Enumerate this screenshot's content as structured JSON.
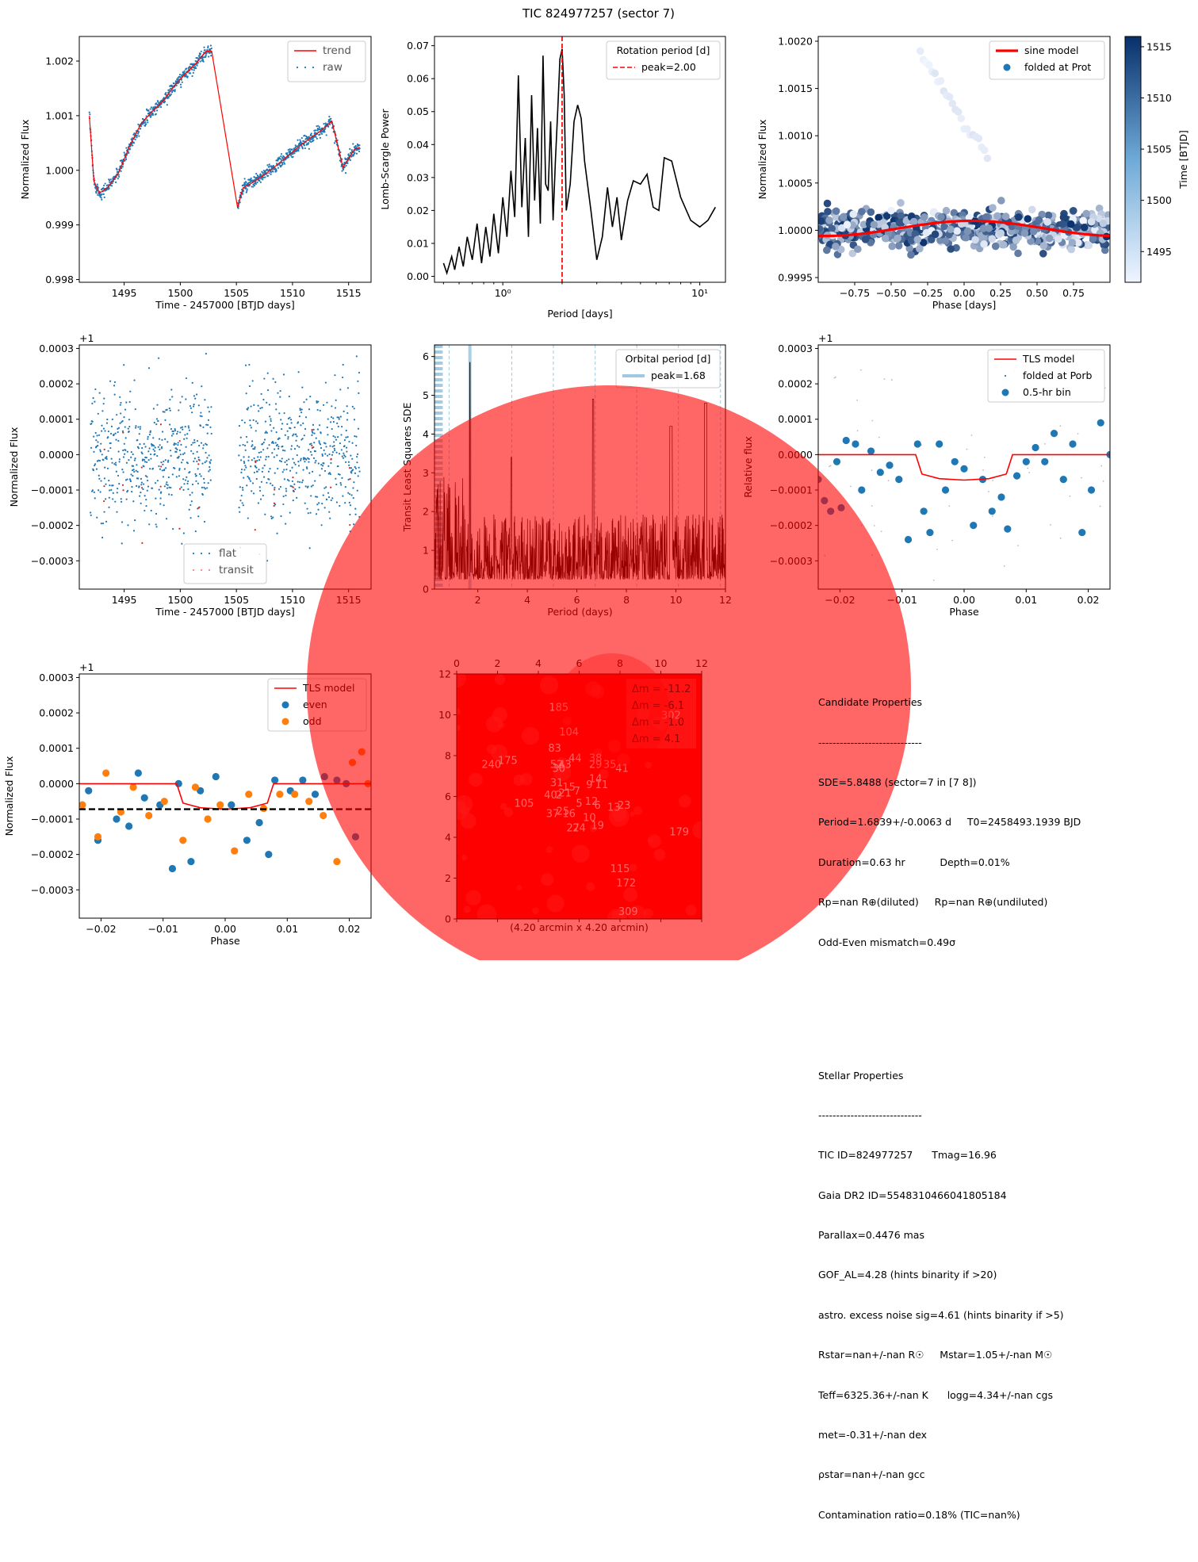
{
  "figure": {
    "suptitle": "TIC 824977257 (sector 7)",
    "colors": {
      "trend": "#ff0000",
      "raw": "#1f77b4",
      "even": "#1f77b4",
      "odd": "#ff7f0e",
      "overlay": "#ff0000"
    }
  },
  "chart_data": [
    {
      "id": "raw_lc",
      "type": "scatter",
      "xlabel": "Time - 2457000 [BTJD days]",
      "ylabel": "Normalized Flux",
      "xlim": [
        1491,
        1517
      ],
      "ylim": [
        0.99795,
        1.00245
      ],
      "xticks": [
        1495,
        1500,
        1505,
        1510,
        1515
      ],
      "xtick_labels": [
        "1495",
        "1500",
        "1505",
        "1510",
        "1515"
      ],
      "yticks": [
        0.998,
        0.999,
        1.0,
        1.001,
        1.002
      ],
      "ytick_labels": [
        "0.998",
        "0.999",
        "1.000",
        "1.001",
        "1.002"
      ],
      "legend": [
        "trend",
        "raw"
      ],
      "legend_position": "top-right",
      "series": [
        {
          "name": "trend",
          "kind": "line",
          "x": [
            1491.9,
            1492.3,
            1492.8,
            1493.5,
            1494.5,
            1495.5,
            1496.5,
            1497.5,
            1498.5,
            1499.5,
            1500.5,
            1501.5,
            1502.3,
            1502.8,
            1505.1,
            1505.6,
            1506.5,
            1507.5,
            1508.5,
            1509.5,
            1510.5,
            1511.5,
            1512.5,
            1513.5,
            1514.5,
            1515.5,
            1516.0
          ],
          "y": [
            1.001,
            0.9998,
            0.99958,
            0.99968,
            0.99995,
            1.00045,
            1.00085,
            1.00108,
            1.00128,
            1.00155,
            1.00178,
            1.00198,
            1.00218,
            1.00218,
            0.99932,
            0.99968,
            0.99978,
            0.99992,
            1.00008,
            1.00025,
            1.00042,
            1.00058,
            1.00072,
            1.0009,
            1.00005,
            1.00038,
            1.00042
          ]
        },
        {
          "name": "raw",
          "kind": "points",
          "generated": "noisy samples along the trend, 1491.9-1502.8 and 1505.1-1516.0 BTJD"
        }
      ]
    },
    {
      "id": "lomb_scargle",
      "type": "line",
      "xlabel": "Period [days]",
      "ylabel": "Lomb-Scargle Power",
      "xscale": "log",
      "xlim": [
        0.45,
        13.5
      ],
      "ylim": [
        -0.0018,
        0.0728
      ],
      "xticks": [
        1,
        10
      ],
      "xtick_labels": [
        "10⁰",
        "10¹"
      ],
      "yticks": [
        0.0,
        0.01,
        0.02,
        0.03,
        0.04,
        0.05,
        0.06,
        0.07
      ],
      "ytick_labels": [
        "0.00",
        "0.01",
        "0.02",
        "0.03",
        "0.04",
        "0.05",
        "0.06",
        "0.07"
      ],
      "legend_title": "Rotation period [d]",
      "legend": [
        "peak=2.00"
      ],
      "peak": 2.0,
      "series": [
        {
          "name": "power",
          "x": [
            0.5,
            0.52,
            0.55,
            0.57,
            0.6,
            0.63,
            0.66,
            0.7,
            0.74,
            0.78,
            0.82,
            0.86,
            0.9,
            0.95,
            1.0,
            1.05,
            1.1,
            1.15,
            1.2,
            1.25,
            1.3,
            1.35,
            1.4,
            1.45,
            1.5,
            1.55,
            1.6,
            1.65,
            1.7,
            1.75,
            1.8,
            1.85,
            1.9,
            1.95,
            2.0,
            2.05,
            2.1,
            2.2,
            2.3,
            2.4,
            2.5,
            2.6,
            2.8,
            3.0,
            3.2,
            3.4,
            3.6,
            3.8,
            4.0,
            4.3,
            4.6,
            5.0,
            5.4,
            5.8,
            6.2,
            6.6,
            7.2,
            8.0,
            9.0,
            10.0,
            11.0,
            12.0
          ],
          "y": [
            0.004,
            0.001,
            0.006,
            0.002,
            0.009,
            0.003,
            0.012,
            0.005,
            0.016,
            0.004,
            0.015,
            0.006,
            0.019,
            0.007,
            0.024,
            0.012,
            0.032,
            0.018,
            0.061,
            0.021,
            0.042,
            0.012,
            0.055,
            0.023,
            0.045,
            0.016,
            0.067,
            0.028,
            0.026,
            0.047,
            0.017,
            0.035,
            0.05,
            0.066,
            0.069,
            0.055,
            0.02,
            0.028,
            0.047,
            0.052,
            0.048,
            0.035,
            0.02,
            0.005,
            0.012,
            0.027,
            0.015,
            0.024,
            0.011,
            0.023,
            0.029,
            0.028,
            0.031,
            0.021,
            0.02,
            0.036,
            0.035,
            0.024,
            0.017,
            0.015,
            0.017,
            0.021
          ]
        }
      ]
    },
    {
      "id": "rotation_fold",
      "type": "scatter",
      "xlabel": "Phase [days]",
      "ylabel": "Normalized Flux",
      "colorbar_label": "Time [BTJD]",
      "colorbar_range": [
        1492,
        1516
      ],
      "colorbar_ticks": [
        "1495",
        "1500",
        "1505",
        "1510",
        "1515"
      ],
      "xlim": [
        -1.0,
        1.0
      ],
      "ylim": [
        0.99945,
        1.00205
      ],
      "xticks": [
        -0.75,
        -0.5,
        -0.25,
        0.0,
        0.25,
        0.5,
        0.75
      ],
      "xtick_labels": [
        "−0.75",
        "−0.50",
        "−0.25",
        "0.00",
        "0.25",
        "0.50",
        "0.75"
      ],
      "yticks": [
        0.9995,
        1.0,
        1.0005,
        1.001,
        1.0015,
        1.002
      ],
      "ytick_labels": [
        "0.9995",
        "1.0000",
        "1.0005",
        "1.0010",
        "1.0015",
        "1.0020"
      ],
      "legend": [
        "sine model",
        "folded at Prot"
      ],
      "series": [
        {
          "name": "sine model",
          "kind": "line",
          "amplitude": 8e-05,
          "offset": 1.00002
        },
        {
          "name": "folded at Prot",
          "kind": "points",
          "generated": "scatter around 1.0000 with sigma 0.0001"
        }
      ]
    },
    {
      "id": "flat_lc",
      "type": "scatter",
      "xlabel": "Time - 2457000 [BTJD days]",
      "ylabel": "Normalized Flux",
      "offset_label": "+1",
      "xlim": [
        1491,
        1517
      ],
      "ylim": [
        -0.00038,
        0.00031
      ],
      "xticks": [
        1495,
        1500,
        1505,
        1510,
        1515
      ],
      "xtick_labels": [
        "1495",
        "1500",
        "1505",
        "1510",
        "1515"
      ],
      "yticks": [
        -0.0003,
        -0.0002,
        -0.0001,
        0.0,
        0.0001,
        0.0002,
        0.0003
      ],
      "ytick_labels": [
        "−0.0003",
        "−0.0002",
        "−0.0001",
        "0.0000",
        "0.0001",
        "0.0002",
        "0.0003"
      ],
      "legend": [
        "flat",
        "transit"
      ],
      "legend_position": "bottom-center"
    },
    {
      "id": "tls_periodogram",
      "type": "line",
      "xlabel": "Period (days)",
      "ylabel": "Transit Least Squares SDE",
      "xlim": [
        0.25,
        12.0
      ],
      "ylim": [
        0,
        6.3
      ],
      "xticks": [
        2,
        4,
        6,
        8,
        10,
        12
      ],
      "xtick_labels": [
        "2",
        "4",
        "6",
        "8",
        "10",
        "12"
      ],
      "yticks": [
        0,
        1,
        2,
        3,
        4,
        5,
        6
      ],
      "ytick_labels": [
        "0",
        "1",
        "2",
        "3",
        "4",
        "5",
        "6"
      ],
      "legend_title": "Orbital period [d]",
      "legend": [
        "peak=1.68"
      ],
      "peak": 1.68,
      "harmonics": [
        3.37,
        5.05,
        6.74,
        8.42,
        10.1,
        11.8,
        0.84,
        0.56,
        0.42,
        0.34,
        0.28
      ]
    },
    {
      "id": "tls_fold",
      "type": "scatter",
      "xlabel": "Phase",
      "ylabel": "Relative flux",
      "offset_label": "+1",
      "xlim": [
        -0.0235,
        0.0235
      ],
      "ylim": [
        -0.00038,
        0.00031
      ],
      "xticks": [
        -0.02,
        -0.01,
        0.0,
        0.01,
        0.02
      ],
      "xtick_labels": [
        "−0.02",
        "−0.01",
        "0.00",
        "0.01",
        "0.02"
      ],
      "yticks": [
        -0.0003,
        -0.0002,
        -0.0001,
        0.0,
        0.0001,
        0.0002,
        0.0003
      ],
      "ytick_labels": [
        "−0.0003",
        "−0.0002",
        "−0.0001",
        "0.0000",
        "0.0001",
        "0.0002",
        "0.0003"
      ],
      "legend": [
        "TLS model",
        "folded at Porb",
        "0.5-hr bin"
      ],
      "series": [
        {
          "name": "0.5-hr bin",
          "x": [
            -0.0235,
            -0.0205,
            -0.019,
            -0.0175,
            -0.0165,
            -0.015,
            -0.0135,
            -0.012,
            -0.0105,
            -0.009,
            -0.0075,
            -0.0065,
            -0.0055,
            -0.004,
            -0.003,
            -0.0015,
            0.0,
            0.0015,
            0.003,
            0.0045,
            0.006,
            0.007,
            0.0085,
            0.01,
            0.0115,
            0.013,
            0.0145,
            0.016,
            0.0175,
            0.019,
            0.0205,
            0.022,
            0.0235,
            -0.0225,
            -0.0215,
            -0.0198
          ],
          "y": [
            -7e-05,
            -2e-05,
            4e-05,
            3e-05,
            -0.0001,
            1e-05,
            -5e-05,
            -3e-05,
            -7e-05,
            -0.00024,
            3e-05,
            -0.00016,
            -0.00022,
            3e-05,
            -0.0001,
            -2e-05,
            -4e-05,
            -0.0002,
            -7e-05,
            -0.00016,
            -0.00012,
            -0.00021,
            -6e-05,
            -2e-05,
            2e-05,
            -2e-05,
            6e-05,
            -7e-05,
            3e-05,
            -0.00022,
            -0.0001,
            9e-05,
            0.0,
            -0.00013,
            -0.00016,
            -0.00015
          ]
        }
      ]
    },
    {
      "id": "odd_even",
      "type": "scatter",
      "xlabel": "Phase",
      "ylabel": "Normalized Flux",
      "offset_label": "+1",
      "xlim": [
        -0.0235,
        0.0235
      ],
      "ylim": [
        -0.00038,
        0.00031
      ],
      "xticks": [
        -0.02,
        -0.01,
        0.0,
        0.01,
        0.02
      ],
      "xtick_labels": [
        "−0.02",
        "−0.01",
        "0.00",
        "0.01",
        "0.02"
      ],
      "yticks": [
        -0.0003,
        -0.0002,
        -0.0001,
        0.0,
        0.0001,
        0.0002,
        0.0003
      ],
      "ytick_labels": [
        "−0.0003",
        "−0.0002",
        "−0.0001",
        "0.0000",
        "0.0001",
        "0.0002",
        "0.0003"
      ],
      "legend": [
        "TLS model",
        "even",
        "odd"
      ],
      "series": [
        {
          "name": "even",
          "x": [
            -0.022,
            -0.0205,
            -0.0175,
            -0.0155,
            -0.014,
            -0.013,
            -0.0105,
            -0.0085,
            -0.0075,
            -0.0055,
            -0.004,
            -0.0015,
            0.001,
            0.0035,
            0.0055,
            0.007,
            0.008,
            0.0105,
            0.0125,
            0.0145,
            0.016,
            0.018,
            0.0195,
            0.021
          ],
          "y": [
            -2e-05,
            -0.00016,
            -0.0001,
            -0.00012,
            3e-05,
            -4e-05,
            -6e-05,
            -0.00024,
            0.0,
            -0.00022,
            -2e-05,
            2e-05,
            -6e-05,
            -0.00016,
            -0.00011,
            -0.0002,
            1e-05,
            -2e-05,
            1e-05,
            -3e-05,
            2e-05,
            1e-05,
            0.0,
            -0.00015
          ]
        },
        {
          "name": "odd",
          "x": [
            -0.023,
            -0.0205,
            -0.0192,
            -0.0168,
            -0.0148,
            -0.0123,
            -0.0098,
            -0.0068,
            -0.0048,
            -0.0028,
            -0.0008,
            0.0015,
            0.0038,
            0.0062,
            0.0088,
            0.0112,
            0.0135,
            0.0158,
            0.018,
            0.0205,
            0.022,
            0.023
          ],
          "y": [
            -6e-05,
            -0.00015,
            3e-05,
            -8e-05,
            -1e-05,
            -9e-05,
            -5e-05,
            -0.00016,
            -1e-05,
            -0.0001,
            -6e-05,
            -0.00019,
            -3e-05,
            -7e-05,
            -3e-05,
            -3e-05,
            -5e-05,
            -9e-05,
            -0.00022,
            6e-05,
            9e-05,
            0.0
          ]
        }
      ]
    },
    {
      "id": "tpf_image",
      "type": "heatmap",
      "caption": "(4.20 arcmin x 4.20 arcmin)",
      "xlim": [
        0,
        12
      ],
      "ylim": [
        0,
        12
      ],
      "xticks": [
        "0",
        "2",
        "4",
        "6",
        "8",
        "10",
        "12"
      ],
      "yticks": [
        "0",
        "2",
        "4",
        "6",
        "8",
        "10",
        "12"
      ],
      "legend": [
        "Δm = -11.2",
        "Δm = -6.1",
        "Δm = -1.0",
        "Δm = 4.1"
      ],
      "labels": [
        {
          "t": "185",
          "x": 5.0,
          "y": 10.2
        },
        {
          "t": "104",
          "x": 5.5,
          "y": 9.0
        },
        {
          "t": "302",
          "x": 10.5,
          "y": 9.8
        },
        {
          "t": "83",
          "x": 4.8,
          "y": 8.2
        },
        {
          "t": "44",
          "x": 5.8,
          "y": 7.7
        },
        {
          "t": "38",
          "x": 6.8,
          "y": 7.7
        },
        {
          "t": "175",
          "x": 2.5,
          "y": 7.6
        },
        {
          "t": "240",
          "x": 1.7,
          "y": 7.4
        },
        {
          "t": "29",
          "x": 6.8,
          "y": 7.4
        },
        {
          "t": "35",
          "x": 7.5,
          "y": 7.4
        },
        {
          "t": "41",
          "x": 8.1,
          "y": 7.2
        },
        {
          "t": "52",
          "x": 4.9,
          "y": 7.4
        },
        {
          "t": "43",
          "x": 5.3,
          "y": 7.4
        },
        {
          "t": "30",
          "x": 5.0,
          "y": 7.2
        },
        {
          "t": "14",
          "x": 6.8,
          "y": 6.7
        },
        {
          "t": "9",
          "x": 6.5,
          "y": 6.4
        },
        {
          "t": "11",
          "x": 7.1,
          "y": 6.4
        },
        {
          "t": "31",
          "x": 4.9,
          "y": 6.5
        },
        {
          "t": "15",
          "x": 5.5,
          "y": 6.3
        },
        {
          "t": "7",
          "x": 5.9,
          "y": 6.1
        },
        {
          "t": "21",
          "x": 5.3,
          "y": 6.0
        },
        {
          "t": "40",
          "x": 4.6,
          "y": 5.9
        },
        {
          "t": "2",
          "x": 5.0,
          "y": 5.9
        },
        {
          "t": "105",
          "x": 3.3,
          "y": 5.5
        },
        {
          "t": "5",
          "x": 6.0,
          "y": 5.5
        },
        {
          "t": "12",
          "x": 6.6,
          "y": 5.6
        },
        {
          "t": "6",
          "x": 6.9,
          "y": 5.4
        },
        {
          "t": "13",
          "x": 7.7,
          "y": 5.3
        },
        {
          "t": "23",
          "x": 8.2,
          "y": 5.4
        },
        {
          "t": "37",
          "x": 4.7,
          "y": 5.0
        },
        {
          "t": "25",
          "x": 5.2,
          "y": 5.1
        },
        {
          "t": "16",
          "x": 5.5,
          "y": 5.0
        },
        {
          "t": "10",
          "x": 6.5,
          "y": 4.8
        },
        {
          "t": "27",
          "x": 5.7,
          "y": 4.3
        },
        {
          "t": "24",
          "x": 6.0,
          "y": 4.3
        },
        {
          "t": "19",
          "x": 6.9,
          "y": 4.4
        },
        {
          "t": "179",
          "x": 10.9,
          "y": 4.1
        },
        {
          "t": "115",
          "x": 8.0,
          "y": 2.3
        },
        {
          "t": "172",
          "x": 8.3,
          "y": 1.6
        },
        {
          "t": "309",
          "x": 8.4,
          "y": 0.2
        }
      ]
    }
  ],
  "candidate_properties": {
    "heading": "Candidate Properties",
    "separator": "-----------------------------",
    "lines": [
      "SDE=5.8488 (sector=7 in [7 8])",
      "Period=1.6839+/-0.0063 d     T0=2458493.1939 BJD",
      "Duration=0.63 hr           Depth=0.01%",
      "Rp=nan R⊕(diluted)     Rp=nan R⊕(undiluted)",
      "Odd-Even mismatch=0.49σ"
    ]
  },
  "stellar_properties": {
    "heading": "Stellar Properties",
    "separator": "-----------------------------",
    "lines": [
      "TIC ID=824977257      Tmag=16.96",
      "Gaia DR2 ID=5548310466041805184",
      "Parallax=0.4476 mas",
      "GOF_AL=4.28 (hints binarity if >20)",
      "astro. excess noise sig=4.61 (hints binarity if >5)",
      "Rstar=nan+/-nan R☉     Mstar=1.05+/-nan M☉",
      "Teff=6325.36+/-nan K      logg=4.34+/-nan cgs",
      "met=-0.31+/-nan dex",
      "ρstar=nan+/-nan gcc",
      "Contamination ratio=0.18% (TIC=nan%)"
    ]
  }
}
